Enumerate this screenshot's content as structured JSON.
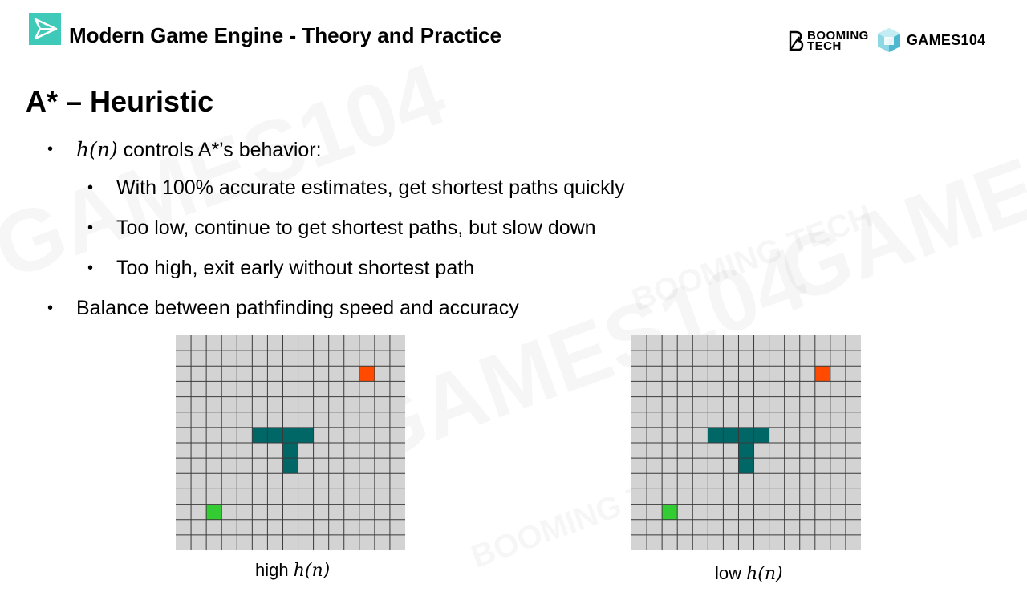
{
  "header": {
    "title": "Modern Game Engine - Theory and Practice",
    "brand_left_line1": "BOOMING",
    "brand_left_line2": "TECH",
    "brand_right": "GAMES104",
    "accent_color": "#3ec9b8"
  },
  "slide": {
    "title": "A* – Heuristic",
    "bullets": [
      {
        "math": "h(n)",
        "text": " controls A*’s behavior:"
      },
      {
        "text": "With 100% accurate estimates, get shortest paths quickly"
      },
      {
        "text": "Too low, continue to get shortest paths, but slow down"
      },
      {
        "text": "Too high, exit early without shortest path"
      },
      {
        "text": "Balance between pathfinding speed and accuracy"
      }
    ],
    "bullet_glyph": "•"
  },
  "figures": [
    {
      "caption_prefix": "high ",
      "caption_math": "h(n)"
    },
    {
      "caption_prefix": "low ",
      "caption_math": "h(n)"
    }
  ],
  "grid": {
    "columns": 15,
    "rows": 14,
    "cell_color": "#d3d3d3",
    "line_color": "#3a3a3a",
    "goal_color": "#ff4a00",
    "start_color": "#33cc33",
    "obstacle_color": "#006666"
  },
  "watermarks": [
    "GAMES104",
    "BOOMING TECH"
  ]
}
